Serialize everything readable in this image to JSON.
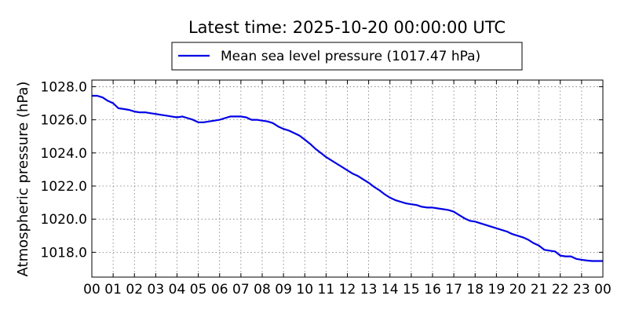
{
  "chart_data": {
    "type": "line",
    "title": "Latest time: 2025-10-20 00:00:00 UTC",
    "xlabel": "",
    "ylabel": "Atmospheric pressure (hPa)",
    "x_tick_labels": [
      "00",
      "01",
      "02",
      "03",
      "04",
      "05",
      "06",
      "07",
      "08",
      "09",
      "10",
      "11",
      "12",
      "13",
      "14",
      "15",
      "16",
      "17",
      "18",
      "19",
      "20",
      "21",
      "22",
      "23",
      "00"
    ],
    "y_ticks": [
      1018.0,
      1020.0,
      1022.0,
      1024.0,
      1026.0,
      1028.0
    ],
    "y_tick_labels": [
      "1018.0",
      "1020.0",
      "1022.0",
      "1024.0",
      "1026.0",
      "1028.0"
    ],
    "xlim": [
      0,
      24
    ],
    "ylim": [
      1016.5,
      1028.4
    ],
    "grid": true,
    "legend_position": "top-center",
    "series": [
      {
        "name": "Mean sea level pressure (1017.47 hPa)",
        "color": "#0000e6",
        "x": [
          0,
          0.25,
          0.5,
          0.75,
          1.0,
          1.25,
          1.5,
          1.75,
          2.0,
          2.25,
          2.5,
          2.75,
          3.0,
          3.25,
          3.5,
          3.75,
          4.0,
          4.25,
          4.5,
          4.75,
          5.0,
          5.25,
          5.5,
          5.75,
          6.0,
          6.25,
          6.5,
          6.75,
          7.0,
          7.25,
          7.5,
          7.75,
          8.0,
          8.25,
          8.5,
          8.75,
          9.0,
          9.25,
          9.5,
          9.75,
          10.0,
          10.25,
          10.5,
          10.75,
          11.0,
          11.25,
          11.5,
          11.75,
          12.0,
          12.25,
          12.5,
          12.75,
          13.0,
          13.25,
          13.5,
          13.75,
          14.0,
          14.25,
          14.5,
          14.75,
          15.0,
          15.25,
          15.5,
          15.75,
          16.0,
          16.25,
          16.5,
          16.75,
          17.0,
          17.25,
          17.5,
          17.75,
          18.0,
          18.25,
          18.5,
          18.75,
          19.0,
          19.25,
          19.5,
          19.75,
          20.0,
          20.25,
          20.5,
          20.75,
          21.0,
          21.25,
          21.5,
          21.75,
          22.0,
          22.25,
          22.5,
          22.75,
          23.0,
          23.25,
          23.5,
          23.75,
          24.0
        ],
        "y": [
          1027.45,
          1027.45,
          1027.35,
          1027.15,
          1027.0,
          1026.7,
          1026.65,
          1026.6,
          1026.5,
          1026.45,
          1026.45,
          1026.4,
          1026.35,
          1026.3,
          1026.25,
          1026.2,
          1026.15,
          1026.2,
          1026.1,
          1026.0,
          1025.85,
          1025.85,
          1025.9,
          1025.95,
          1026.0,
          1026.1,
          1026.2,
          1026.2,
          1026.2,
          1026.15,
          1026.0,
          1026.0,
          1025.95,
          1025.9,
          1025.8,
          1025.6,
          1025.45,
          1025.35,
          1025.2,
          1025.05,
          1024.8,
          1024.55,
          1024.25,
          1024.0,
          1023.75,
          1023.55,
          1023.35,
          1023.15,
          1022.95,
          1022.75,
          1022.6,
          1022.4,
          1022.2,
          1021.95,
          1021.75,
          1021.5,
          1021.3,
          1021.15,
          1021.05,
          1020.95,
          1020.9,
          1020.85,
          1020.75,
          1020.7,
          1020.7,
          1020.65,
          1020.6,
          1020.55,
          1020.45,
          1020.25,
          1020.05,
          1019.9,
          1019.85,
          1019.75,
          1019.65,
          1019.55,
          1019.45,
          1019.35,
          1019.25,
          1019.1,
          1019.0,
          1018.9,
          1018.75,
          1018.55,
          1018.4,
          1018.15,
          1018.1,
          1018.05,
          1017.8,
          1017.75,
          1017.75,
          1017.6,
          1017.55,
          1017.5,
          1017.47,
          1017.47,
          1017.47
        ]
      }
    ]
  }
}
